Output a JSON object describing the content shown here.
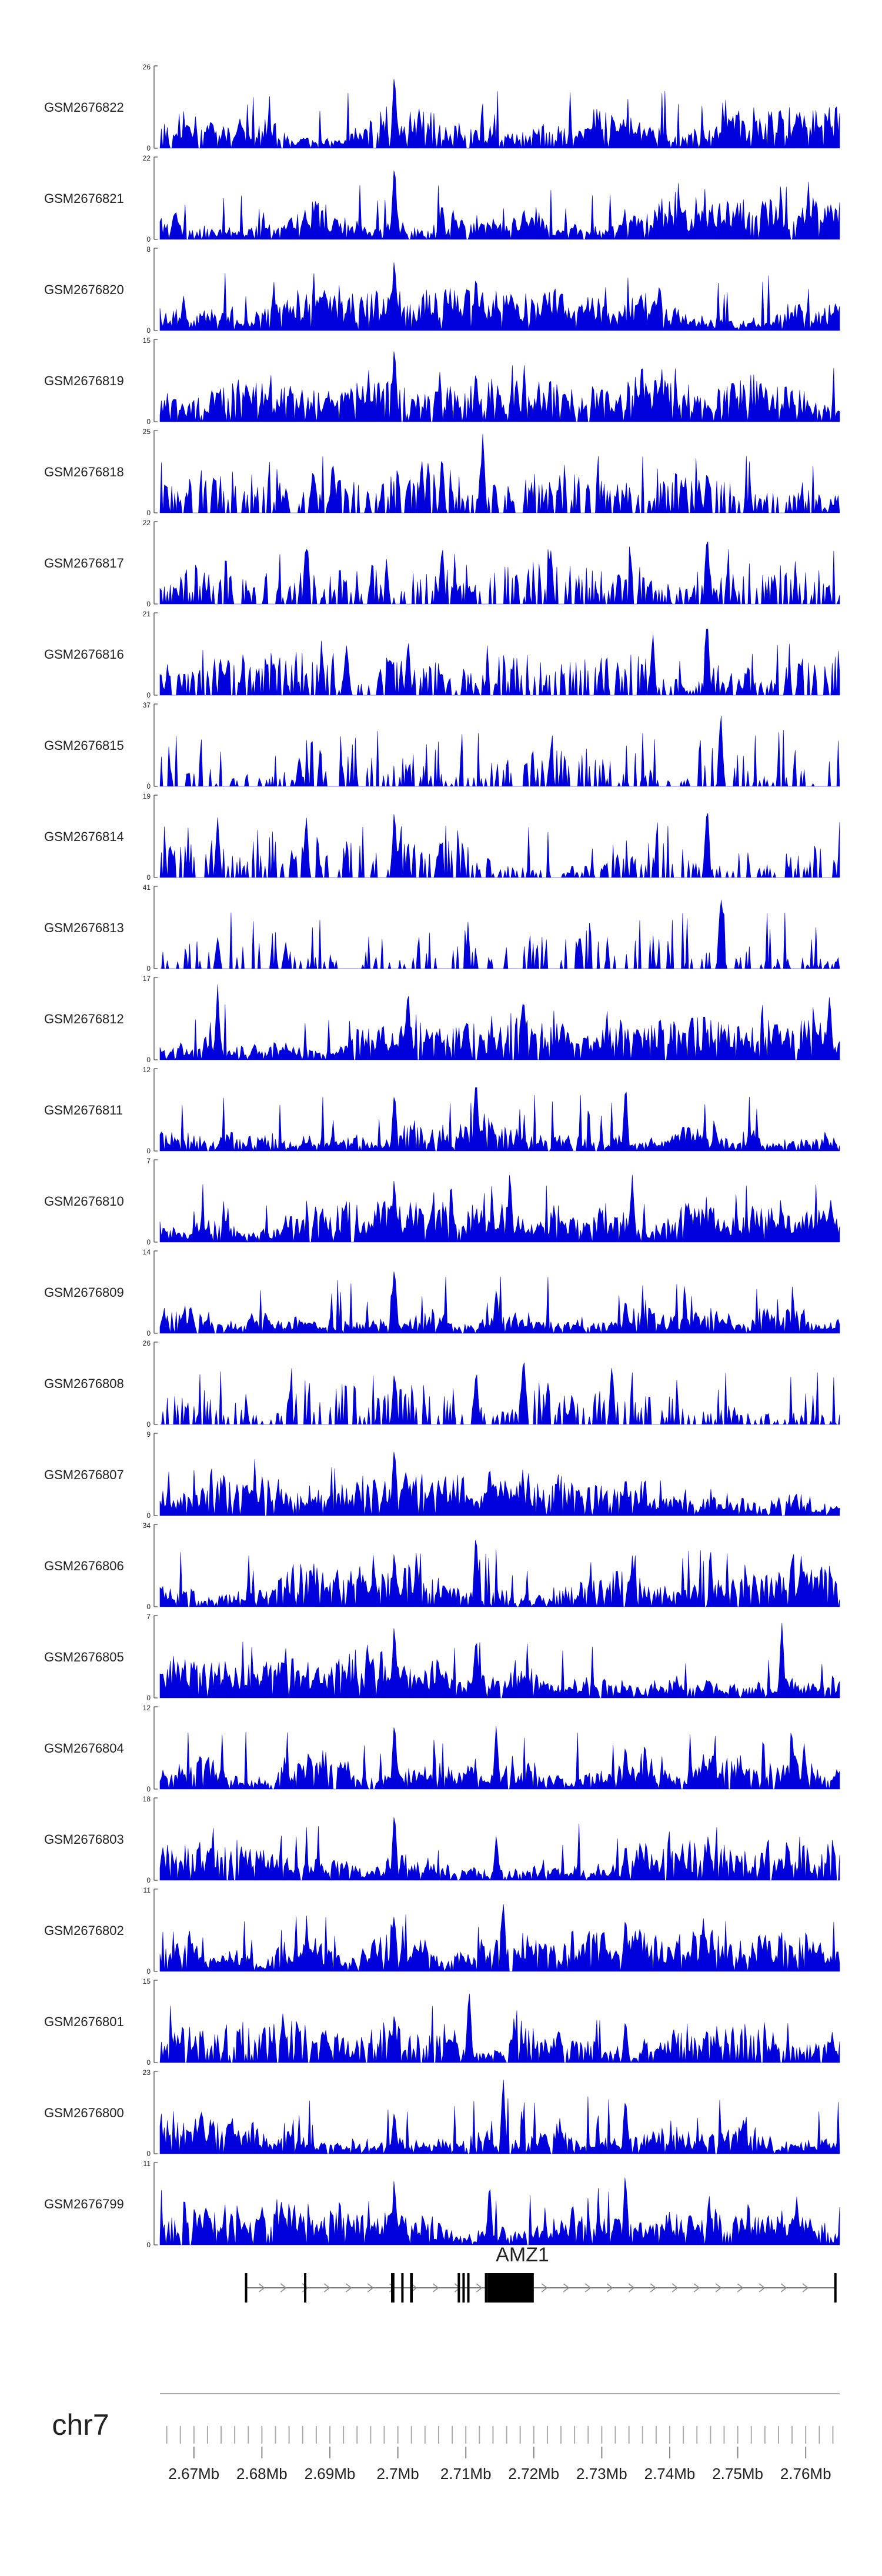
{
  "chart_data": {
    "type": "area",
    "xlabel": "",
    "ylabel": "",
    "chromosome": "chr7",
    "xlim": [
      2.665,
      2.765
    ],
    "x_unit": "Mb",
    "x_ticks": [
      {
        "value": 2.67,
        "label": "2.67Mb"
      },
      {
        "value": 2.68,
        "label": "2.68Mb"
      },
      {
        "value": 2.69,
        "label": "2.69Mb"
      },
      {
        "value": 2.7,
        "label": "2.7Mb"
      },
      {
        "value": 2.71,
        "label": "2.71Mb"
      },
      {
        "value": 2.72,
        "label": "2.72Mb"
      },
      {
        "value": 2.73,
        "label": "2.73Mb"
      },
      {
        "value": 2.74,
        "label": "2.74Mb"
      },
      {
        "value": 2.75,
        "label": "2.75Mb"
      },
      {
        "value": 2.76,
        "label": "2.76Mb"
      }
    ],
    "minor_tick_step": 0.002,
    "fill_color": "#0000dd",
    "grid": false,
    "legend": "none",
    "tracks": [
      {
        "name": "GSM2676822",
        "ymax": 26,
        "peaks": [
          [
            2.6995,
            26
          ],
          [
            2.7115,
            7
          ],
          [
            2.7335,
            9
          ],
          [
            2.6805,
            6
          ]
        ],
        "sparsity": 0.15
      },
      {
        "name": "GSM2676821",
        "ymax": 22,
        "peaks": [
          [
            2.6995,
            22
          ],
          [
            2.7065,
            12
          ],
          [
            2.7185,
            10
          ],
          [
            2.7415,
            11
          ]
        ],
        "sparsity": 0.1
      },
      {
        "name": "GSM2676820",
        "ymax": 8,
        "peaks": [
          [
            2.6995,
            8
          ],
          [
            2.7115,
            6
          ],
          [
            2.6685,
            4
          ]
        ],
        "sparsity": 0.05
      },
      {
        "name": "GSM2676819",
        "ymax": 15,
        "peaks": [
          [
            2.6995,
            15
          ],
          [
            2.7115,
            10
          ],
          [
            2.7175,
            8
          ]
        ],
        "sparsity": 0.15
      },
      {
        "name": "GSM2676818",
        "ymax": 25,
        "peaks": [
          [
            2.7125,
            25
          ],
          [
            2.7065,
            20
          ],
          [
            2.7035,
            18
          ],
          [
            2.6905,
            17
          ],
          [
            2.7455,
            14
          ]
        ],
        "sparsity": 0.45
      },
      {
        "name": "GSM2676817",
        "ymax": 22,
        "peaks": [
          [
            2.7455,
            22
          ],
          [
            2.6865,
            19
          ],
          [
            2.7065,
            18
          ],
          [
            2.7225,
            17
          ]
        ],
        "sparsity": 0.5
      },
      {
        "name": "GSM2676816",
        "ymax": 21,
        "peaks": [
          [
            2.7455,
            21
          ],
          [
            2.7375,
            17
          ],
          [
            2.7015,
            16
          ],
          [
            2.6925,
            15
          ]
        ],
        "sparsity": 0.45
      },
      {
        "name": "GSM2676815",
        "ymax": 37,
        "peaks": [
          [
            2.7475,
            37
          ],
          [
            2.6855,
            15
          ],
          [
            2.7225,
            20
          ]
        ],
        "sparsity": 0.7
      },
      {
        "name": "GSM2676814",
        "ymax": 19,
        "peaks": [
          [
            2.7455,
            19
          ],
          [
            2.6865,
            16
          ],
          [
            2.6995,
            17
          ],
          [
            2.6735,
            15
          ]
        ],
        "sparsity": 0.55
      },
      {
        "name": "GSM2676813",
        "ymax": 41,
        "peaks": [
          [
            2.7475,
            41
          ],
          [
            2.6735,
            17
          ],
          [
            2.6835,
            14
          ]
        ],
        "sparsity": 0.75
      },
      {
        "name": "GSM2676812",
        "ymax": 17,
        "peaks": [
          [
            2.7015,
            17
          ],
          [
            2.7185,
            15
          ],
          [
            2.6735,
            16
          ],
          [
            2.7635,
            15
          ]
        ],
        "sparsity": 0.15
      },
      {
        "name": "GSM2676811",
        "ymax": 12,
        "peaks": [
          [
            2.7115,
            12
          ],
          [
            2.7335,
            11
          ],
          [
            2.6995,
            10
          ]
        ],
        "sparsity": 0.12
      },
      {
        "name": "GSM2676810",
        "ymax": 7,
        "peaks": [
          [
            2.7165,
            7
          ],
          [
            2.6995,
            6
          ],
          [
            2.7345,
            6
          ]
        ],
        "sparsity": 0.05
      },
      {
        "name": "GSM2676809",
        "ymax": 14,
        "peaks": [
          [
            2.6995,
            14
          ],
          [
            2.7145,
            9
          ],
          [
            2.7335,
            7
          ]
        ],
        "sparsity": 0.1
      },
      {
        "name": "GSM2676808",
        "ymax": 26,
        "peaks": [
          [
            2.7185,
            26
          ],
          [
            2.7315,
            21
          ],
          [
            2.6995,
            18
          ],
          [
            2.7115,
            20
          ]
        ],
        "sparsity": 0.6
      },
      {
        "name": "GSM2676807",
        "ymax": 9,
        "peaks": [
          [
            2.6995,
            9
          ],
          [
            2.7135,
            6
          ],
          [
            2.7335,
            5
          ]
        ],
        "sparsity": 0.1
      },
      {
        "name": "GSM2676806",
        "ymax": 34,
        "peaks": [
          [
            2.7115,
            34
          ],
          [
            2.6995,
            25
          ],
          [
            2.7345,
            24
          ]
        ],
        "sparsity": 0.12
      },
      {
        "name": "GSM2676805",
        "ymax": 7,
        "peaks": [
          [
            2.6995,
            7
          ],
          [
            2.7565,
            7
          ],
          [
            2.7115,
            6
          ]
        ],
        "sparsity": 0.05
      },
      {
        "name": "GSM2676804",
        "ymax": 12,
        "peaks": [
          [
            2.6995,
            12
          ],
          [
            2.7145,
            10
          ],
          [
            2.7335,
            7
          ]
        ],
        "sparsity": 0.1
      },
      {
        "name": "GSM2676803",
        "ymax": 18,
        "peaks": [
          [
            2.6995,
            18
          ],
          [
            2.7145,
            11
          ],
          [
            2.7335,
            9
          ]
        ],
        "sparsity": 0.12
      },
      {
        "name": "GSM2676802",
        "ymax": 11,
        "peaks": [
          [
            2.7155,
            11
          ],
          [
            2.6995,
            9
          ],
          [
            2.7335,
            8
          ]
        ],
        "sparsity": 0.1
      },
      {
        "name": "GSM2676801",
        "ymax": 15,
        "peaks": [
          [
            2.7105,
            15
          ],
          [
            2.6995,
            10
          ],
          [
            2.7335,
            9
          ]
        ],
        "sparsity": 0.2
      },
      {
        "name": "GSM2676800",
        "ymax": 23,
        "peaks": [
          [
            2.7155,
            23
          ],
          [
            2.7335,
            19
          ],
          [
            2.6995,
            14
          ]
        ],
        "sparsity": 0.12
      },
      {
        "name": "GSM2676799",
        "ymax": 11,
        "peaks": [
          [
            2.7335,
            11
          ],
          [
            2.6995,
            10
          ],
          [
            2.7135,
            9
          ]
        ],
        "sparsity": 0.1
      }
    ],
    "gene": {
      "name": "AMZ1",
      "start": 2.6775,
      "end": 2.7645,
      "strand": "+",
      "exons": [
        [
          2.6775,
          2.6778
        ],
        [
          2.6862,
          2.6865
        ],
        [
          2.699,
          2.6995
        ],
        [
          2.7005,
          2.7008
        ],
        [
          2.7018,
          2.7022
        ],
        [
          2.7088,
          2.709
        ],
        [
          2.7095,
          2.7097
        ],
        [
          2.7102,
          2.7104
        ],
        [
          2.7128,
          2.7132
        ],
        [
          2.7132,
          2.72
        ],
        [
          2.7642,
          2.7645
        ]
      ],
      "thick_start": 2.7132,
      "thick_end": 2.72
    }
  }
}
